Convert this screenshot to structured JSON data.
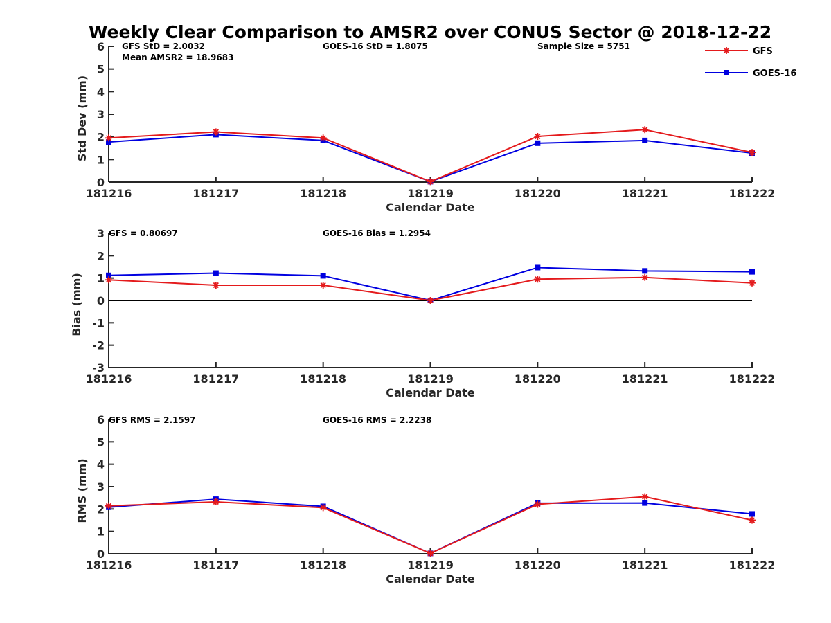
{
  "figure_title": "Weekly Clear Comparison to AMSR2 over CONUS Sector @ 2018-12-22",
  "colors": {
    "gfs": "#e41a1c",
    "goes": "#0000e0"
  },
  "legend": {
    "items": [
      {
        "name": "GFS",
        "color": "#e41a1c",
        "marker": "asterisk"
      },
      {
        "name": "GOES-16",
        "color": "#0000e0",
        "marker": "square"
      }
    ]
  },
  "chart_data": [
    {
      "type": "line",
      "title": "Weekly Clear Comparison to AMSR2 over CONUS Sector @ 2018-12-22",
      "xlabel": "Calendar Date",
      "ylabel": "Std Dev (mm)",
      "categories": [
        "181216",
        "181217",
        "181218",
        "181219",
        "181220",
        "181221",
        "181222"
      ],
      "ylim": [
        0,
        6
      ],
      "yticks": [
        "0",
        "1",
        "2",
        "3",
        "4",
        "5",
        "6"
      ],
      "zero_line": false,
      "annotations": [
        "GFS StD = 2.0032",
        "Mean AMSR2 = 18.9683",
        "GOES-16 StD = 1.8075",
        "Sample Size = 5751"
      ],
      "series": [
        {
          "name": "GFS",
          "marker": "asterisk",
          "values": [
            1.95,
            2.22,
            1.95,
            0.02,
            2.02,
            2.32,
            1.31
          ]
        },
        {
          "name": "GOES-16",
          "marker": "square",
          "values": [
            1.77,
            2.1,
            1.84,
            0.02,
            1.72,
            1.84,
            1.28
          ]
        }
      ]
    },
    {
      "type": "line",
      "xlabel": "Calendar Date",
      "ylabel": "Bias (mm)",
      "categories": [
        "181216",
        "181217",
        "181218",
        "181219",
        "181220",
        "181221",
        "181222"
      ],
      "ylim": [
        -3,
        3
      ],
      "yticks": [
        "-3",
        "-2",
        "-1",
        "0",
        "1",
        "2",
        "3"
      ],
      "zero_line": true,
      "annotations": [
        "GFS = 0.80697",
        "GOES-16 Bias  = 1.2954"
      ],
      "series": [
        {
          "name": "GFS",
          "marker": "asterisk",
          "values": [
            0.92,
            0.68,
            0.68,
            0.0,
            0.95,
            1.03,
            0.78
          ]
        },
        {
          "name": "GOES-16",
          "marker": "square",
          "values": [
            1.12,
            1.22,
            1.1,
            0.0,
            1.47,
            1.32,
            1.28
          ]
        }
      ]
    },
    {
      "type": "line",
      "xlabel": "Calendar Date",
      "ylabel": "RMS (mm)",
      "categories": [
        "181216",
        "181217",
        "181218",
        "181219",
        "181220",
        "181221",
        "181222"
      ],
      "ylim": [
        0,
        6
      ],
      "yticks": [
        "0",
        "1",
        "2",
        "3",
        "4",
        "5",
        "6"
      ],
      "zero_line": false,
      "annotations": [
        "GFS RMS = 2.1597",
        "GOES-16 RMS = 2.2238"
      ],
      "series": [
        {
          "name": "GFS",
          "marker": "asterisk",
          "values": [
            2.14,
            2.32,
            2.06,
            0.02,
            2.21,
            2.55,
            1.5
          ]
        },
        {
          "name": "GOES-16",
          "marker": "square",
          "values": [
            2.08,
            2.44,
            2.12,
            0.02,
            2.26,
            2.27,
            1.78
          ]
        }
      ]
    }
  ]
}
